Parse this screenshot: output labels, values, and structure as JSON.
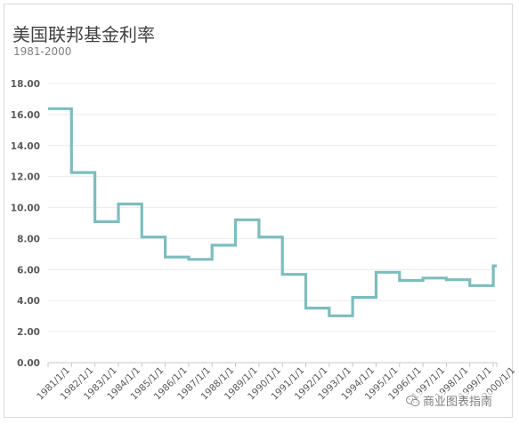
{
  "chart_data": {
    "type": "line",
    "style": "step",
    "title": "美国联邦基金利率",
    "subtitle": "1981-2000",
    "xlabel": "",
    "ylabel": "",
    "categories": [
      "1981/1/1",
      "1982/1/1",
      "1983/1/1",
      "1984/1/1",
      "1985/1/1",
      "1986/1/1",
      "1987/1/1",
      "1988/1/1",
      "1989/1/1",
      "1990/1/1",
      "1991/1/1",
      "1992/1/1",
      "1993/1/1",
      "1994/1/1",
      "1995/1/1",
      "1996/1/1",
      "1997/1/1",
      "1998/1/1",
      "1999/1/1",
      "2000/1/1"
    ],
    "series": [
      {
        "values": [
          16.38,
          12.26,
          9.09,
          10.23,
          8.1,
          6.81,
          6.66,
          7.57,
          9.21,
          8.1,
          5.69,
          3.52,
          3.02,
          4.21,
          5.83,
          5.3,
          5.46,
          5.35,
          4.97,
          6.24
        ]
      }
    ],
    "yticks": [
      "0.00",
      "2.00",
      "4.00",
      "6.00",
      "8.00",
      "10.00",
      "12.00",
      "14.00",
      "16.00",
      "18.00"
    ],
    "ylim": [
      0,
      18
    ],
    "grid": true,
    "legend": "none",
    "line_color": "#7dbdbd",
    "grid_color": "#ececec",
    "axis_color": "#c8c8c8"
  },
  "watermark": {
    "icon": "wechat-icon",
    "text": "商业图表指南"
  }
}
